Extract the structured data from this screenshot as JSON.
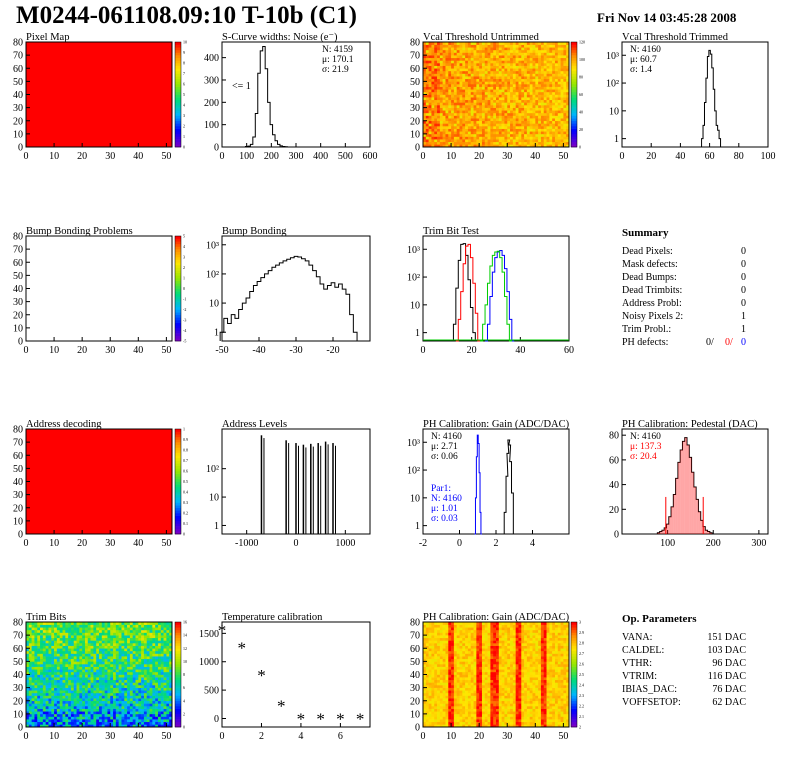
{
  "page": {
    "title": "M0244-061108.09:10 T-10b (C1)",
    "date": "Fri Nov 14 03:45:28 2008"
  },
  "colors": {
    "histogram": "#000000",
    "red": "#ff0000",
    "blue": "#0000ff",
    "green": "#00cc00"
  },
  "chart_data": [
    {
      "id": "pixel-map",
      "type": "heatmap",
      "title": "Pixel Map",
      "xlim": [
        0,
        52
      ],
      "ylim": [
        0,
        80
      ],
      "xticks": [
        "0",
        "10",
        "20",
        "30",
        "40",
        "50"
      ],
      "yticks": [
        "0",
        "10",
        "20",
        "30",
        "40",
        "50",
        "60",
        "70",
        "80"
      ],
      "fill": "uniform-red",
      "zlim": [
        0,
        10
      ],
      "zticks": [
        "0",
        "1",
        "2",
        "3",
        "4",
        "5",
        "6",
        "7",
        "8",
        "9",
        "10"
      ]
    },
    {
      "id": "scurve-widths",
      "type": "bar",
      "title": "S-Curve widths: Noise (e⁻)",
      "xlim": [
        0,
        600
      ],
      "ylim": [
        0,
        470
      ],
      "xticks": [
        "0",
        "100",
        "200",
        "300",
        "400",
        "500",
        "600"
      ],
      "yticks": [
        "0",
        "100",
        "200",
        "300",
        "400"
      ],
      "stats": [
        "N: 4159",
        "μ: 170.1",
        "σ: 21.9"
      ],
      "annotation": "<= 1",
      "x": [
        100,
        110,
        120,
        130,
        140,
        150,
        160,
        170,
        180,
        190,
        200,
        210,
        220,
        230,
        240,
        250,
        260,
        270,
        280,
        290,
        300
      ],
      "values": [
        2,
        4,
        12,
        45,
        150,
        330,
        430,
        450,
        350,
        200,
        100,
        55,
        28,
        12,
        5,
        2,
        1,
        0,
        0,
        0,
        0
      ]
    },
    {
      "id": "vcal-untrimmed",
      "type": "heatmap",
      "title": "Vcal Threshold Untrimmed",
      "xlim": [
        0,
        52
      ],
      "ylim": [
        0,
        80
      ],
      "xticks": [
        "0",
        "10",
        "20",
        "30",
        "40",
        "50"
      ],
      "yticks": [
        "0",
        "10",
        "20",
        "30",
        "40",
        "50",
        "60",
        "70",
        "80"
      ],
      "fill": "noise-orange-left-gradient",
      "zlim": [
        0,
        120
      ],
      "zticks": [
        "0",
        "20",
        "40",
        "60",
        "80",
        "100",
        "120"
      ]
    },
    {
      "id": "vcal-trimmed",
      "type": "bar",
      "title": "Vcal Threshold Trimmed",
      "xlim": [
        0,
        100
      ],
      "log_y": true,
      "ylim": [
        0.5,
        3000
      ],
      "xticks": [
        "0",
        "20",
        "40",
        "60",
        "80",
        "100"
      ],
      "yticks": [
        "1",
        "10",
        "10²",
        "10³"
      ],
      "stats": [
        "N: 4160",
        "μ: 60.7",
        "σ: 1.4"
      ],
      "x": [
        55,
        56,
        57,
        58,
        59,
        60,
        61,
        62,
        63,
        64,
        65,
        66,
        67
      ],
      "values": [
        1,
        3,
        20,
        150,
        900,
        1500,
        1100,
        350,
        60,
        10,
        3,
        2,
        1
      ]
    },
    {
      "id": "bump-bonding-problems",
      "type": "heatmap",
      "title": "Bump Bonding Problems",
      "xlim": [
        0,
        52
      ],
      "ylim": [
        0,
        80
      ],
      "xticks": [
        "0",
        "10",
        "20",
        "30",
        "40",
        "50"
      ],
      "yticks": [
        "0",
        "10",
        "20",
        "30",
        "40",
        "50",
        "60",
        "70",
        "80"
      ],
      "fill": "empty",
      "zlim": [
        -5,
        5
      ],
      "zticks": [
        "-5",
        "-4",
        "-3",
        "-2",
        "-1",
        "0",
        "1",
        "2",
        "3",
        "4",
        "5"
      ]
    },
    {
      "id": "bump-bonding",
      "type": "bar",
      "title": "Bump Bonding",
      "xlim": [
        -50,
        -10
      ],
      "log_y": true,
      "ylim": [
        0.5,
        2000
      ],
      "xticks": [
        "-50",
        "-40",
        "-30",
        "-20"
      ],
      "yticks": [
        "1",
        "10",
        "10²",
        "10³"
      ],
      "x": [
        -50,
        -49,
        -48,
        -47,
        -46,
        -45,
        -44,
        -43,
        -42,
        -41,
        -40,
        -39,
        -38,
        -37,
        -36,
        -35,
        -34,
        -33,
        -32,
        -31,
        -30,
        -29,
        -28,
        -27,
        -26,
        -25,
        -24,
        -23,
        -22,
        -21,
        -20,
        -19,
        -18,
        -17,
        -16,
        -15,
        -14
      ],
      "values": [
        1,
        3,
        2,
        4,
        3,
        6,
        10,
        15,
        25,
        40,
        55,
        75,
        100,
        130,
        170,
        200,
        240,
        280,
        320,
        360,
        400,
        380,
        330,
        280,
        200,
        130,
        80,
        45,
        30,
        40,
        50,
        35,
        45,
        30,
        20,
        4,
        1
      ]
    },
    {
      "id": "trim-bit-test",
      "type": "line",
      "title": "Trim Bit Test",
      "xlim": [
        0,
        60
      ],
      "log_y": true,
      "ylim": [
        0.5,
        3000
      ],
      "xticks": [
        "0",
        "20",
        "40",
        "60"
      ],
      "yticks": [
        "1",
        "10",
        "10²",
        "10³"
      ],
      "series": [
        {
          "color": "#000000",
          "x": [
            12,
            13,
            14,
            15,
            16,
            17,
            18,
            19,
            20,
            21,
            22
          ],
          "values": [
            0,
            2,
            40,
            400,
            1500,
            1600,
            600,
            80,
            8,
            1,
            0
          ]
        },
        {
          "color": "#ff0000",
          "x": [
            14,
            15,
            16,
            17,
            18,
            19,
            20,
            21,
            22,
            23
          ],
          "values": [
            0,
            3,
            30,
            300,
            1300,
            1500,
            500,
            60,
            5,
            0
          ]
        },
        {
          "color": "#0000ff",
          "x": [
            26,
            27,
            28,
            29,
            30,
            31,
            32,
            33,
            34,
            35,
            36,
            37
          ],
          "values": [
            0,
            2,
            20,
            150,
            500,
            800,
            900,
            600,
            200,
            30,
            3,
            0
          ]
        },
        {
          "color": "#00cc00",
          "x": [
            24,
            25,
            26,
            27,
            28,
            29,
            30,
            31,
            32,
            33,
            34,
            35,
            36
          ],
          "values": [
            0,
            2,
            10,
            60,
            250,
            600,
            800,
            850,
            500,
            150,
            20,
            2,
            0
          ]
        }
      ]
    },
    {
      "id": "summary",
      "type": "table",
      "title": "Summary",
      "rows": [
        {
          "label": "Dead Pixels:",
          "value": "0"
        },
        {
          "label": "Mask defects:",
          "value": "0"
        },
        {
          "label": "Dead Bumps:",
          "value": "0"
        },
        {
          "label": "Dead Trimbits:",
          "value": "0"
        },
        {
          "label": "Address Probl:",
          "value": "0"
        },
        {
          "label": "Noisy Pixels 2:",
          "value": "1"
        },
        {
          "label": "Trim Probl.:",
          "value": "1"
        }
      ],
      "ph_defects": {
        "label": "PH defects:",
        "v1": "0/",
        "v2": "0/",
        "v3": "0"
      }
    },
    {
      "id": "address-decoding",
      "type": "heatmap",
      "title": "Address decoding",
      "xlim": [
        0,
        52
      ],
      "ylim": [
        0,
        80
      ],
      "xticks": [
        "0",
        "10",
        "20",
        "30",
        "40",
        "50"
      ],
      "yticks": [
        "0",
        "10",
        "20",
        "30",
        "40",
        "50",
        "60",
        "70",
        "80"
      ],
      "fill": "uniform-red",
      "zlim": [
        0,
        1
      ],
      "zticks": [
        "0",
        "0.1",
        "0.2",
        "0.3",
        "0.4",
        "0.5",
        "0.6",
        "0.7",
        "0.8",
        "0.9",
        "1"
      ]
    },
    {
      "id": "address-levels",
      "type": "bar",
      "title": "Address Levels",
      "xlim": [
        -1500,
        1500
      ],
      "log_y": true,
      "ylim": [
        0.5,
        2500
      ],
      "xticks": [
        "-1000",
        "0",
        "1000"
      ],
      "yticks": [
        "1",
        "10",
        "10²"
      ],
      "x": [
        -700,
        -200,
        0,
        150,
        300,
        450,
        600,
        750
      ],
      "values": [
        1500,
        1000,
        800,
        700,
        750,
        800,
        900,
        800
      ]
    },
    {
      "id": "ph-gain",
      "type": "line",
      "title": "PH Calibration: Gain (ADC/DAC)",
      "xlim": [
        -2,
        6
      ],
      "log_y": true,
      "ylim": [
        0.5,
        3000
      ],
      "xticks": [
        "-2",
        "0",
        "2",
        "4"
      ],
      "yticks": [
        "1",
        "10",
        "10²",
        "10³"
      ],
      "stats": [
        "N: 4160",
        "μ: 2.71",
        "σ: 0.06"
      ],
      "stats2": [
        "Par1:",
        "N: 4160",
        "μ: 1.01",
        "σ: 0.03"
      ],
      "series": [
        {
          "color": "#000000",
          "x": [
            2.4,
            2.5,
            2.6,
            2.65,
            2.7,
            2.75,
            2.8,
            2.9,
            3.0
          ],
          "values": [
            0,
            3,
            60,
            400,
            1200,
            800,
            200,
            15,
            0
          ]
        },
        {
          "color": "#0000ff",
          "x": [
            0.85,
            0.9,
            0.95,
            1.0,
            1.05,
            1.1,
            1.15,
            1.2
          ],
          "values": [
            0,
            10,
            300,
            1800,
            900,
            80,
            3,
            0
          ]
        }
      ]
    },
    {
      "id": "ph-pedestal",
      "type": "bar",
      "title": "PH Calibration: Pedestal (DAC)",
      "xlim": [
        0,
        320
      ],
      "ylim": [
        0,
        85
      ],
      "xticks": [
        "100",
        "200",
        "300"
      ],
      "yticks": [
        "0",
        "20",
        "40",
        "60",
        "80"
      ],
      "stats": [
        "N: 4160",
        "μ: 137.3",
        "σ: 20.4"
      ],
      "x": [
        80,
        85,
        90,
        95,
        100,
        105,
        110,
        115,
        120,
        125,
        130,
        135,
        140,
        145,
        150,
        155,
        160,
        165,
        170,
        175,
        180,
        185,
        190,
        195,
        200
      ],
      "values": [
        1,
        2,
        3,
        5,
        8,
        14,
        22,
        32,
        45,
        58,
        68,
        75,
        78,
        72,
        62,
        50,
        38,
        28,
        18,
        11,
        6,
        3,
        2,
        1,
        0
      ]
    },
    {
      "id": "trim-bits",
      "type": "heatmap",
      "title": "Trim Bits",
      "xlim": [
        0,
        52
      ],
      "ylim": [
        0,
        80
      ],
      "xticks": [
        "0",
        "10",
        "20",
        "30",
        "40",
        "50"
      ],
      "yticks": [
        "0",
        "10",
        "20",
        "30",
        "40",
        "50",
        "60",
        "70",
        "80"
      ],
      "fill": "noise-rainbow",
      "zlim": [
        0,
        16
      ],
      "zticks": [
        "0",
        "2",
        "4",
        "6",
        "8",
        "10",
        "12",
        "14",
        "16"
      ]
    },
    {
      "id": "temperature-calibration",
      "type": "scatter",
      "title": "Temperature calibration",
      "xlim": [
        0,
        7.5
      ],
      "ylim": [
        -150,
        1700
      ],
      "xticks": [
        "0",
        "2",
        "4",
        "6"
      ],
      "yticks": [
        "0",
        "500",
        "1000",
        "1500"
      ],
      "x": [
        0,
        1,
        2,
        3,
        4,
        5,
        6,
        7
      ],
      "values": [
        1560,
        1250,
        770,
        230,
        0,
        0,
        0,
        0
      ]
    },
    {
      "id": "ph-gain-map",
      "type": "heatmap",
      "title": "PH Calibration: Gain (ADC/DAC)",
      "xlim": [
        0,
        52
      ],
      "ylim": [
        0,
        80
      ],
      "xticks": [
        "0",
        "10",
        "20",
        "30",
        "40",
        "50"
      ],
      "yticks": [
        "0",
        "10",
        "20",
        "30",
        "40",
        "50",
        "60",
        "70",
        "80"
      ],
      "fill": "striped-gain",
      "zlim": [
        2,
        3
      ],
      "zticks": [
        "2",
        "2.1",
        "2.2",
        "2.3",
        "2.4",
        "2.5",
        "2.6",
        "2.7",
        "2.8",
        "2.9",
        "3"
      ]
    },
    {
      "id": "op-parameters",
      "type": "table",
      "title": "Op. Parameters",
      "rows": [
        {
          "label": "VANA:",
          "value": "151 DAC"
        },
        {
          "label": "CALDEL:",
          "value": "103 DAC"
        },
        {
          "label": "VTHR:",
          "value": "96 DAC"
        },
        {
          "label": "VTRIM:",
          "value": "116 DAC"
        },
        {
          "label": "IBIAS_DAC:",
          "value": "76 DAC"
        },
        {
          "label": "VOFFSETOP:",
          "value": "62 DAC"
        }
      ]
    }
  ]
}
